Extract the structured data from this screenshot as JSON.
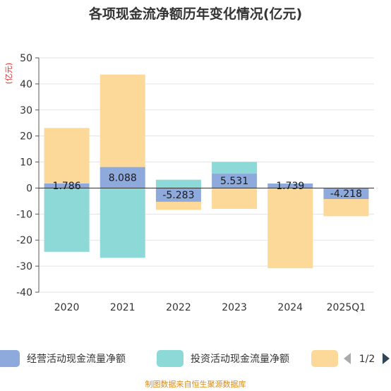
{
  "chart_data": {
    "type": "bar",
    "title": "各项现金流净额历年变化情况(亿元)",
    "ylabel": "(亿元)",
    "categories": [
      "2020",
      "2021",
      "2022",
      "2023",
      "2024",
      "2025Q1"
    ],
    "ylim": [
      -40,
      50
    ],
    "yticks": [
      50,
      40,
      30,
      20,
      10,
      0,
      -10,
      -20,
      -30,
      -40
    ],
    "stacked": true,
    "grid": true,
    "legend_position": "bottom",
    "series": [
      {
        "name": "经营活动现金流量净额",
        "color": "#8eaadc",
        "values": [
          1.786,
          8.088,
          -5.283,
          5.531,
          1.739,
          -4.218
        ],
        "labels": [
          "1.786",
          "8.088",
          "-5.283",
          "5.531",
          "1.739",
          "-4.218"
        ]
      },
      {
        "name": "投资活动现金流量净额",
        "color": "#8dd9d8",
        "values": [
          -24.5,
          -26.8,
          3.2,
          4.5,
          0,
          0
        ]
      },
      {
        "name": "",
        "color": "#fdd999",
        "values": [
          21.3,
          35.5,
          -3.1,
          -8.0,
          -30.8,
          -6.6
        ]
      }
    ]
  },
  "legend": {
    "page": "1/2"
  },
  "source": "制图数据来自恒生聚源数据库"
}
